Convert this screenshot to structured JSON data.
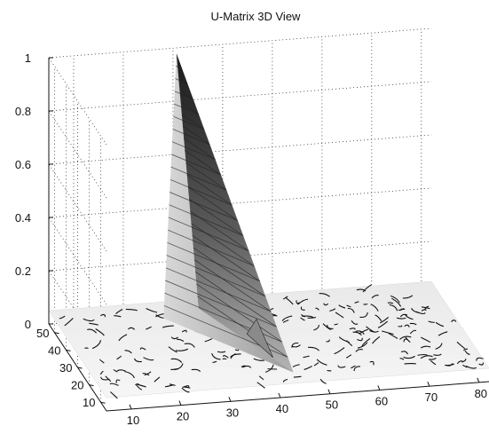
{
  "chart_data": {
    "type": "surface",
    "title": "U-Matrix 3D View",
    "xlabel": "",
    "ylabel": "",
    "zlabel": "",
    "x_ticks": [
      10,
      20,
      30,
      40,
      50,
      60,
      70,
      80
    ],
    "y_ticks": [
      10,
      20,
      30,
      40,
      50
    ],
    "z_ticks": [
      "0",
      "0.2",
      "0.4",
      "0.6",
      "0.8",
      "1"
    ],
    "xlim": [
      5,
      82
    ],
    "ylim": [
      5,
      55
    ],
    "zlim": [
      0,
      1
    ],
    "grid": true,
    "colormap": "gray",
    "features": {
      "peak": {
        "x": 30,
        "y": 52,
        "z": 1.0
      },
      "secondary_ridge": {
        "x": 41,
        "y": 30,
        "z": 0.08
      },
      "base_level": 0.05
    }
  }
}
